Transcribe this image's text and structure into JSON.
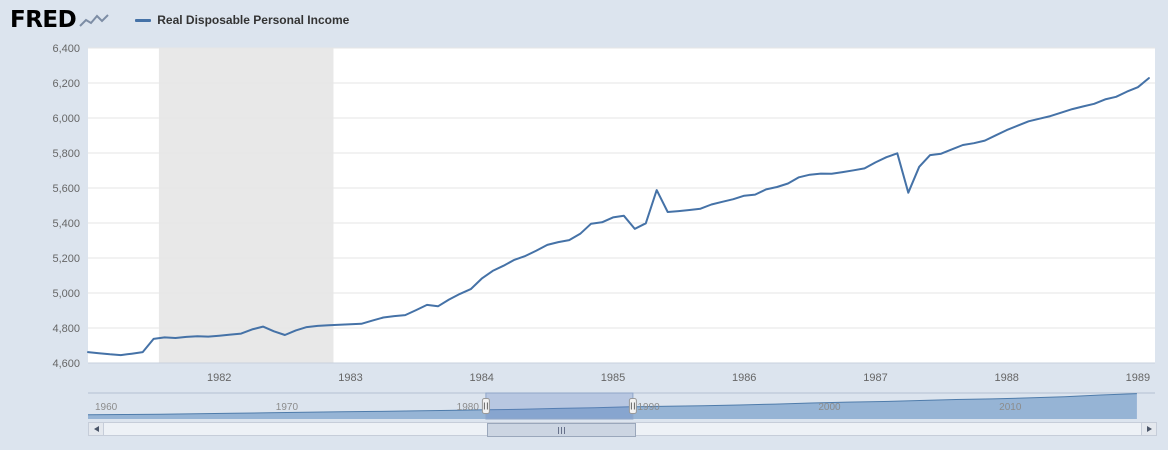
{
  "header": {
    "brand": "FRED",
    "legend_label": "Real Disposable Personal Income"
  },
  "icons": {
    "logo_graph": "line-graph",
    "scroll_left": "triangle-left",
    "scroll_right": "triangle-right",
    "thumb_grip": "grip-lines"
  },
  "colors": {
    "page_bg": "#dce4ee",
    "plot_bg": "#ffffff",
    "line": "#4572a7",
    "grid": "#e6e6e6",
    "axis_line": "#c7d0dd",
    "recession_band": "#e8e8e8",
    "axis_text": "#666666",
    "nav_fill": "#8aabd0",
    "nav_line": "#4f7cab",
    "nav_mask": "rgba(102,133,194,0.3)",
    "nav_mask_border": "#8fa6c8",
    "nav_outline": "#b3c0d2",
    "nav_label": "#8c8c8c",
    "handle_fill": "#f2f2f2",
    "handle_stroke": "#999999",
    "handle_grip": "#666666"
  },
  "chart_data": {
    "type": "line",
    "title": "Real Disposable Personal Income",
    "xlabel": "",
    "ylabel": "",
    "legend_position": "top-left",
    "grid": "horizontal",
    "ylim": [
      4600,
      6400
    ],
    "ytick_step": 200,
    "ytick_labels": [
      "4,600",
      "4,800",
      "5,000",
      "5,200",
      "5,400",
      "5,600",
      "5,800",
      "6,000",
      "6,200",
      "6,400"
    ],
    "xlim": [
      1981.0,
      1989.13
    ],
    "xticks": [
      1982,
      1983,
      1984,
      1985,
      1986,
      1987,
      1988,
      1989
    ],
    "xtick_labels": [
      "1982",
      "1983",
      "1984",
      "1985",
      "1986",
      "1987",
      "1988",
      "1989"
    ],
    "x_start_year": 1981.0,
    "x_frequency": "monthly",
    "recession_bands": [
      [
        1981.54,
        1982.87
      ]
    ],
    "values": [
      4662,
      4656,
      4650,
      4645,
      4653,
      4662,
      4738,
      4746,
      4743,
      4749,
      4753,
      4751,
      4756,
      4762,
      4768,
      4792,
      4808,
      4781,
      4760,
      4786,
      4805,
      4812,
      4816,
      4819,
      4821,
      4824,
      4842,
      4860,
      4868,
      4874,
      4902,
      4932,
      4924,
      4962,
      4995,
      5022,
      5082,
      5126,
      5156,
      5190,
      5212,
      5242,
      5275,
      5291,
      5302,
      5338,
      5396,
      5404,
      5432,
      5441,
      5366,
      5398,
      5588,
      5463,
      5468,
      5474,
      5482,
      5506,
      5521,
      5536,
      5556,
      5562,
      5592,
      5606,
      5626,
      5661,
      5676,
      5682,
      5681,
      5691,
      5701,
      5712,
      5746,
      5776,
      5798,
      5573,
      5721,
      5788,
      5796,
      5821,
      5846,
      5856,
      5871,
      5901,
      5931,
      5956,
      5981,
      5996,
      6011,
      6031,
      6051,
      6066,
      6081,
      6106,
      6121,
      6151,
      6176,
      6228
    ],
    "navigator": {
      "xlim": [
        1959,
        2018
      ],
      "ylim": [
        0,
        13200
      ],
      "year_ticks": [
        1960,
        1970,
        1980,
        1990,
        2000,
        2010
      ],
      "year_tick_labels": [
        "1960",
        "1970",
        "1980",
        "1990",
        "2000",
        "2010"
      ],
      "selected_range": [
        1981.0,
        1989.13
      ],
      "series": {
        "x": [
          1959,
          1961,
          1963,
          1965,
          1967,
          1969,
          1971,
          1973,
          1975,
          1977,
          1979,
          1981,
          1983,
          1985,
          1987,
          1989,
          1991,
          1993,
          1995,
          1997,
          1999,
          2001,
          2003,
          2005,
          2007,
          2009,
          2011,
          2013,
          2015,
          2017
        ],
        "y": [
          2150,
          2300,
          2450,
          2700,
          2950,
          3150,
          3450,
          3700,
          3850,
          4100,
          4350,
          4650,
          4900,
          5400,
          5750,
          6200,
          6450,
          6750,
          7100,
          7550,
          8100,
          8600,
          8900,
          9400,
          9900,
          10200,
          10700,
          11300,
          12200,
          12900
        ]
      }
    }
  }
}
